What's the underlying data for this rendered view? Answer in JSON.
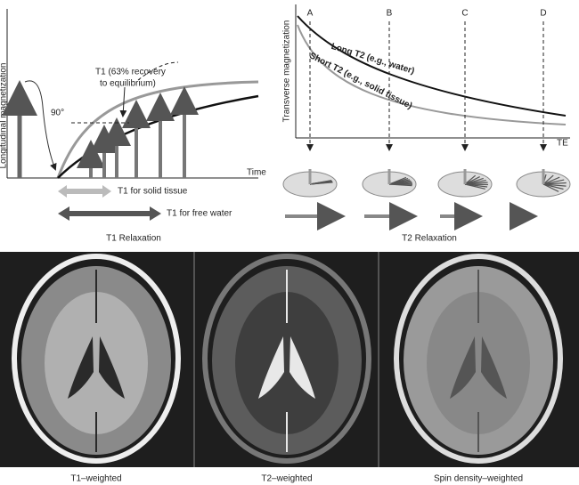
{
  "t1_panel": {
    "y_axis_label": "Longitudinal magnetization",
    "x_axis_label": "Time",
    "angle_label": "90°",
    "annotation_lines": [
      "T1 (63% recovery",
      "to equilibrium)"
    ],
    "solid_label": "T1 for solid tissue",
    "water_label": "T1 for free water",
    "caption": "T1 Relaxation"
  },
  "t2_panel": {
    "y_axis_label": "Transverse magnetization",
    "x_axis_label": "TE",
    "time_points": [
      "A",
      "B",
      "C",
      "D"
    ],
    "long_curve_label": "Long T2 (e.g., water)",
    "short_curve_label": "Short T2 (e.g., solid tissue)",
    "caption": "T2 Relaxation"
  },
  "images": [
    {
      "caption": "T1–weighted"
    },
    {
      "caption": "T2–weighted"
    },
    {
      "caption": "Spin density–weighted"
    }
  ]
}
